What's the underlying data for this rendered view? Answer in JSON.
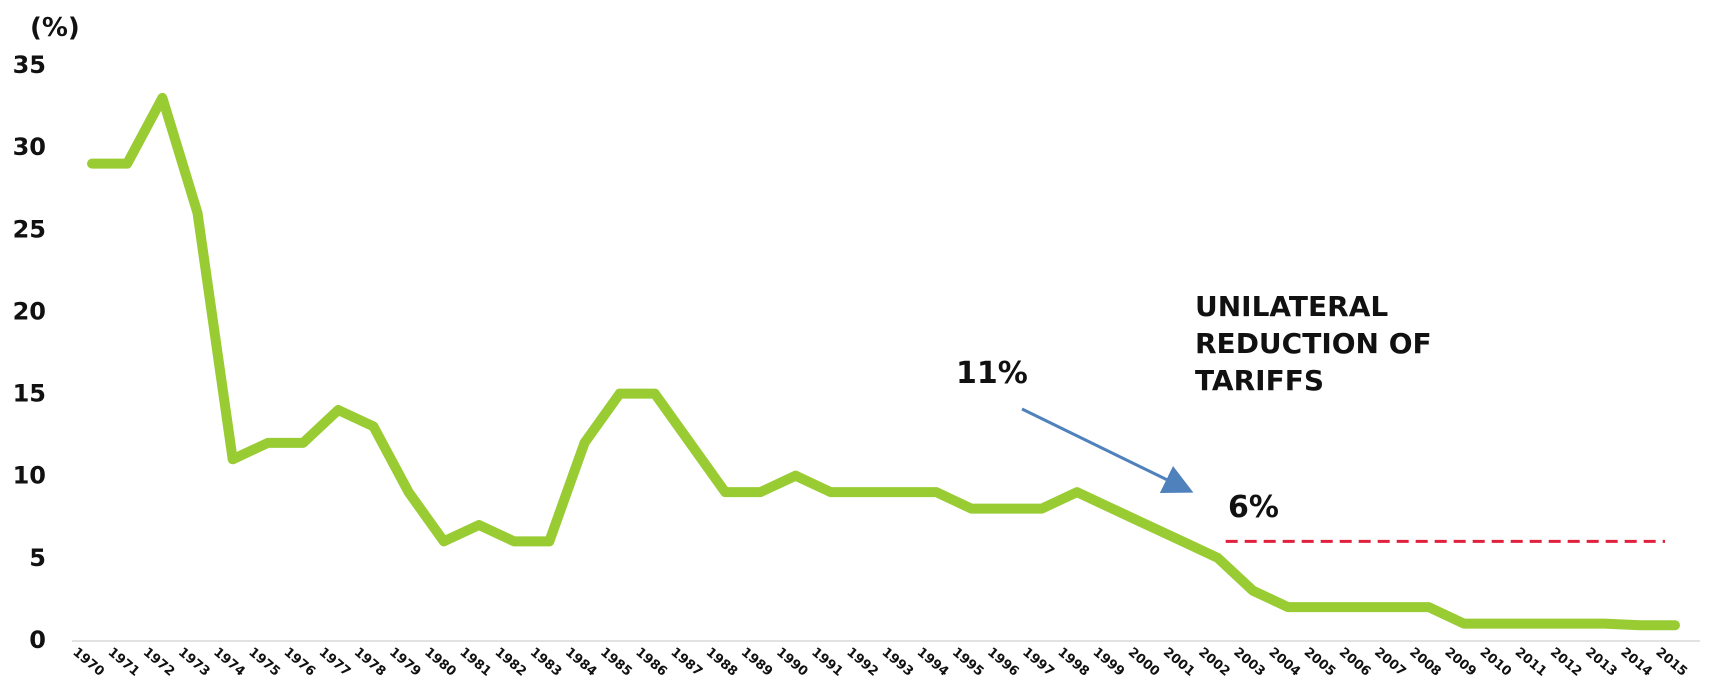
{
  "chart_data": {
    "type": "line",
    "ylabel": "(%)",
    "ylim": [
      0,
      35
    ],
    "yticks": [
      0,
      5,
      10,
      15,
      20,
      25,
      30,
      35
    ],
    "grid": false,
    "x": [
      "1970",
      "1971",
      "1972",
      "1973",
      "1974",
      "1975",
      "1976",
      "1977",
      "1978",
      "1979",
      "1980",
      "1981",
      "1982",
      "1983",
      "1984",
      "1985",
      "1986",
      "1987",
      "1988",
      "1989",
      "1990",
      "1991",
      "1992",
      "1993",
      "1994",
      "1995",
      "1996",
      "1997",
      "1998",
      "1999",
      "2000",
      "2001",
      "2002",
      "2003",
      "2004",
      "2005",
      "2006",
      "2007",
      "2008",
      "2009",
      "2010",
      "2011",
      "2012",
      "2013",
      "2014",
      "2015"
    ],
    "series": [
      {
        "color": "#99cc33",
        "values": [
          29,
          29,
          33,
          26,
          11,
          12,
          12,
          14,
          13,
          9,
          6,
          7,
          6,
          6,
          12,
          15,
          15,
          12,
          9,
          9,
          10,
          9,
          9,
          9,
          9,
          8,
          8,
          8,
          9,
          8,
          7,
          6,
          5,
          3,
          2,
          2,
          2,
          2,
          2,
          1,
          1,
          1,
          1,
          1,
          0.9,
          0.9
        ]
      }
    ],
    "annotations": {
      "start_label": "11%",
      "end_label": "6%",
      "title_lines": [
        "UNILATERAL",
        "REDUCTION OF",
        "TARIFFS"
      ],
      "arrow_color": "#4f81bd",
      "reference_line": {
        "value": 6,
        "from": "2002",
        "to": "2015",
        "color": "#e0203c",
        "style": "dashed"
      }
    }
  }
}
